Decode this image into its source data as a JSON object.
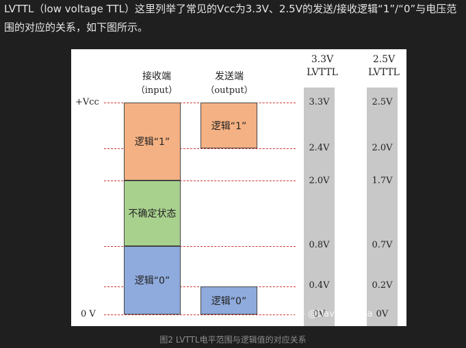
{
  "paragraph": "LVTTL（low voltage TTL）这里列举了常见的Vcc为3.3V、2.5V的发送/接收逻辑“1”/“0”与电压范围的对应的关系，如下图所示。",
  "figure": {
    "receiver_title": "接收端",
    "receiver_sub": "（input）",
    "sender_title": "发送端",
    "sender_sub": "（output）",
    "vcc_label": "+Vcc",
    "zero_label": "0 V",
    "rx_logic1": "逻辑“1”",
    "rx_undefined": "不确定状态",
    "rx_logic0": "逻辑“0”",
    "tx_logic1": "逻辑“1”",
    "tx_logic0": "逻辑“0”",
    "col33_title": "3.3V",
    "col33_sub": "LVTTL",
    "col25_title": "2.5V",
    "col25_sub": "LVTTL",
    "col33_values": [
      "3.3V",
      "2.4V",
      "2.0V",
      "0.8V",
      "0.4V",
      "0V"
    ],
    "col25_values": [
      "2.5V",
      "2.0V",
      "1.7V",
      "0.7V",
      "0.2V",
      "0V"
    ],
    "colors": {
      "logic1": "#f4b183",
      "undefined": "#a9d18e",
      "logic0": "#8faadc",
      "dash": "#d03030",
      "column": "#c8c8c8"
    },
    "watermark": "知乎 @David Panda"
  },
  "caption": "图2 LVTTL电平范围与逻辑值的对应关系"
}
